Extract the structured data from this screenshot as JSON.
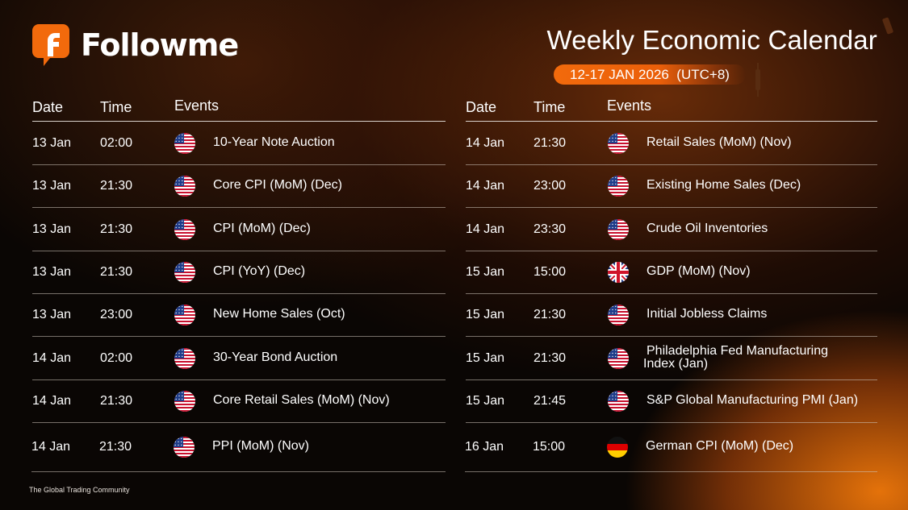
{
  "brand": {
    "name": "Followme",
    "tagline": "The Global Trading Community",
    "accent": "#f26a0c"
  },
  "header": {
    "title": "Weekly Economic Calendar",
    "date_range": "12-17 JAN 2026  (UTC+8)"
  },
  "columns": {
    "date": "Date",
    "time": "Time",
    "events": "Events"
  },
  "left_rows": [
    {
      "date": "13 Jan",
      "time": "02:00",
      "flag": "us-flag-icon",
      "event": "10-Year Note Auction"
    },
    {
      "date": "13 Jan",
      "time": "21:30",
      "flag": "us-flag-icon",
      "event": "Core CPI (MoM) (Dec)"
    },
    {
      "date": "13 Jan",
      "time": "21:30",
      "flag": "us-flag-icon",
      "event": "CPI (MoM) (Dec)"
    },
    {
      "date": "13 Jan",
      "time": "21:30",
      "flag": "us-flag-icon",
      "event": "CPI (YoY) (Dec)"
    },
    {
      "date": "13 Jan",
      "time": "23:00",
      "flag": "us-flag-icon",
      "event": "New Home Sales (Oct)"
    },
    {
      "date": "14 Jan",
      "time": "02:00",
      "flag": "us-flag-icon",
      "event": "30-Year Bond Auction"
    },
    {
      "date": "14 Jan",
      "time": "21:30",
      "flag": "us-flag-icon",
      "event": "Core Retail Sales (MoM) (Nov)"
    },
    {
      "date": "14 Jan",
      "time": "21:30",
      "flag": "us-flag-icon",
      "event": "PPI (MoM) (Nov)"
    }
  ],
  "right_rows": [
    {
      "date": "14 Jan",
      "time": "21:30",
      "flag": "us-flag-icon",
      "event": "Retail Sales (MoM) (Nov)"
    },
    {
      "date": "14 Jan",
      "time": "23:00",
      "flag": "us-flag-icon",
      "event": "Existing Home Sales (Dec)"
    },
    {
      "date": "14 Jan",
      "time": "23:30",
      "flag": "us-flag-icon",
      "event": "Crude Oil Inventories"
    },
    {
      "date": "15 Jan",
      "time": "15:00",
      "flag": "uk-flag-icon",
      "event": "GDP (MoM) (Nov)"
    },
    {
      "date": "15 Jan",
      "time": "21:30",
      "flag": "us-flag-icon",
      "event": "Initial Jobless Claims"
    },
    {
      "date": "15 Jan",
      "time": "21:30",
      "flag": "us-flag-icon",
      "event": "Philadelphia Fed Manufacturing\nIndex (Jan)"
    },
    {
      "date": "15 Jan",
      "time": "21:45",
      "flag": "us-flag-icon",
      "event": "S&P Global Manufacturing PMI (Jan)"
    },
    {
      "date": "16 Jan",
      "time": "15:00",
      "flag": "de-flag-icon",
      "event": "German CPI (MoM) (Dec)"
    }
  ]
}
